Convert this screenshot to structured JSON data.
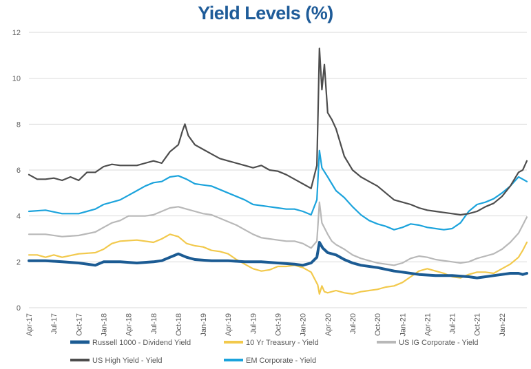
{
  "chart_data": {
    "type": "line",
    "title": "Yield Levels (%)",
    "xlabel": "",
    "ylabel": "",
    "ylim": [
      0,
      12
    ],
    "y_ticks": [
      0,
      2,
      4,
      6,
      8,
      10,
      12
    ],
    "x_domain": [
      0,
      60
    ],
    "x_ticks": [
      {
        "x": 0,
        "label": "Apr-17"
      },
      {
        "x": 3,
        "label": "Jul-17"
      },
      {
        "x": 6,
        "label": "Oct-17"
      },
      {
        "x": 9,
        "label": "Jan-18"
      },
      {
        "x": 12,
        "label": "Apr-18"
      },
      {
        "x": 15,
        "label": "Jul-18"
      },
      {
        "x": 18,
        "label": "Oct-18"
      },
      {
        "x": 21,
        "label": "Jan-19"
      },
      {
        "x": 24,
        "label": "Apr-19"
      },
      {
        "x": 27,
        "label": "Jul-19"
      },
      {
        "x": 30,
        "label": "Oct-19"
      },
      {
        "x": 33,
        "label": "Jan-20"
      },
      {
        "x": 36,
        "label": "Apr-20"
      },
      {
        "x": 39,
        "label": "Jul-20"
      },
      {
        "x": 42,
        "label": "Oct-20"
      },
      {
        "x": 45,
        "label": "Jan-21"
      },
      {
        "x": 48,
        "label": "Apr-21"
      },
      {
        "x": 51,
        "label": "Jul-21"
      },
      {
        "x": 54,
        "label": "Oct-21"
      },
      {
        "x": 57,
        "label": "Jan-22"
      }
    ],
    "grid": true,
    "legend_position": "bottom",
    "series": [
      {
        "name": "Russell 1000 - Dividend Yield",
        "color": "#1b5b93",
        "stroke": "thick",
        "points": [
          [
            0,
            2.05
          ],
          [
            2,
            2.05
          ],
          [
            4,
            2.0
          ],
          [
            6,
            1.95
          ],
          [
            8,
            1.85
          ],
          [
            9,
            2.0
          ],
          [
            11,
            2.0
          ],
          [
            13,
            1.95
          ],
          [
            15,
            2.0
          ],
          [
            16,
            2.05
          ],
          [
            17,
            2.2
          ],
          [
            18,
            2.35
          ],
          [
            19,
            2.2
          ],
          [
            20,
            2.1
          ],
          [
            22,
            2.05
          ],
          [
            24,
            2.05
          ],
          [
            26,
            2.0
          ],
          [
            28,
            2.0
          ],
          [
            30,
            1.95
          ],
          [
            32,
            1.9
          ],
          [
            33,
            1.85
          ],
          [
            34,
            1.95
          ],
          [
            34.7,
            2.2
          ],
          [
            35,
            2.85
          ],
          [
            35.4,
            2.6
          ],
          [
            36,
            2.4
          ],
          [
            37,
            2.3
          ],
          [
            38,
            2.1
          ],
          [
            39,
            1.95
          ],
          [
            40,
            1.85
          ],
          [
            42,
            1.75
          ],
          [
            44,
            1.6
          ],
          [
            45,
            1.55
          ],
          [
            47,
            1.45
          ],
          [
            49,
            1.4
          ],
          [
            51,
            1.4
          ],
          [
            53,
            1.35
          ],
          [
            54,
            1.3
          ],
          [
            55,
            1.35
          ],
          [
            56,
            1.4
          ],
          [
            57,
            1.45
          ],
          [
            58,
            1.5
          ],
          [
            59,
            1.5
          ],
          [
            59.5,
            1.45
          ],
          [
            60,
            1.5
          ]
        ]
      },
      {
        "name": "10 Yr Treasury - Yield",
        "color": "#f2c94c",
        "stroke": "normal",
        "points": [
          [
            0,
            2.3
          ],
          [
            1,
            2.3
          ],
          [
            2,
            2.2
          ],
          [
            3,
            2.3
          ],
          [
            4,
            2.2
          ],
          [
            6,
            2.35
          ],
          [
            8,
            2.4
          ],
          [
            9,
            2.55
          ],
          [
            10,
            2.8
          ],
          [
            11,
            2.9
          ],
          [
            13,
            2.95
          ],
          [
            15,
            2.85
          ],
          [
            16,
            3.0
          ],
          [
            17,
            3.2
          ],
          [
            18,
            3.1
          ],
          [
            19,
            2.8
          ],
          [
            20,
            2.7
          ],
          [
            21,
            2.65
          ],
          [
            22,
            2.5
          ],
          [
            23,
            2.45
          ],
          [
            24,
            2.35
          ],
          [
            25,
            2.1
          ],
          [
            26,
            1.9
          ],
          [
            27,
            1.7
          ],
          [
            28,
            1.6
          ],
          [
            29,
            1.65
          ],
          [
            30,
            1.8
          ],
          [
            31,
            1.8
          ],
          [
            32,
            1.85
          ],
          [
            33,
            1.75
          ],
          [
            34,
            1.55
          ],
          [
            34.8,
            1.0
          ],
          [
            35,
            0.6
          ],
          [
            35.3,
            0.95
          ],
          [
            35.6,
            0.7
          ],
          [
            36,
            0.65
          ],
          [
            37,
            0.75
          ],
          [
            38,
            0.65
          ],
          [
            39,
            0.6
          ],
          [
            40,
            0.7
          ],
          [
            41,
            0.75
          ],
          [
            42,
            0.8
          ],
          [
            43,
            0.9
          ],
          [
            44,
            0.95
          ],
          [
            45,
            1.1
          ],
          [
            46,
            1.35
          ],
          [
            47,
            1.6
          ],
          [
            48,
            1.7
          ],
          [
            49,
            1.6
          ],
          [
            50,
            1.5
          ],
          [
            51,
            1.35
          ],
          [
            52,
            1.3
          ],
          [
            53,
            1.45
          ],
          [
            54,
            1.55
          ],
          [
            55,
            1.55
          ],
          [
            56,
            1.5
          ],
          [
            57,
            1.7
          ],
          [
            58,
            1.9
          ],
          [
            59,
            2.2
          ],
          [
            59.5,
            2.5
          ],
          [
            60,
            2.85
          ]
        ]
      },
      {
        "name": "US IG Corporate - Yield",
        "color": "#b8b8b8",
        "stroke": "normal",
        "points": [
          [
            0,
            3.2
          ],
          [
            2,
            3.2
          ],
          [
            4,
            3.1
          ],
          [
            6,
            3.15
          ],
          [
            8,
            3.3
          ],
          [
            9,
            3.5
          ],
          [
            10,
            3.7
          ],
          [
            11,
            3.8
          ],
          [
            12,
            4.0
          ],
          [
            13,
            4.0
          ],
          [
            14,
            4.0
          ],
          [
            15,
            4.05
          ],
          [
            16,
            4.2
          ],
          [
            17,
            4.35
          ],
          [
            18,
            4.4
          ],
          [
            19,
            4.3
          ],
          [
            20,
            4.2
          ],
          [
            21,
            4.1
          ],
          [
            22,
            4.05
          ],
          [
            23,
            3.9
          ],
          [
            24,
            3.75
          ],
          [
            25,
            3.6
          ],
          [
            26,
            3.4
          ],
          [
            27,
            3.2
          ],
          [
            28,
            3.05
          ],
          [
            29,
            3.0
          ],
          [
            30,
            2.95
          ],
          [
            31,
            2.9
          ],
          [
            32,
            2.9
          ],
          [
            33,
            2.8
          ],
          [
            34,
            2.6
          ],
          [
            34.7,
            2.9
          ],
          [
            35,
            4.6
          ],
          [
            35.3,
            3.7
          ],
          [
            36,
            3.2
          ],
          [
            36.5,
            2.9
          ],
          [
            37,
            2.75
          ],
          [
            38,
            2.55
          ],
          [
            39,
            2.3
          ],
          [
            40,
            2.15
          ],
          [
            41,
            2.05
          ],
          [
            42,
            1.95
          ],
          [
            43,
            1.9
          ],
          [
            44,
            1.85
          ],
          [
            45,
            1.95
          ],
          [
            46,
            2.15
          ],
          [
            47,
            2.25
          ],
          [
            48,
            2.2
          ],
          [
            49,
            2.1
          ],
          [
            50,
            2.05
          ],
          [
            51,
            2.0
          ],
          [
            52,
            1.95
          ],
          [
            53,
            2.0
          ],
          [
            54,
            2.15
          ],
          [
            55,
            2.25
          ],
          [
            56,
            2.35
          ],
          [
            57,
            2.55
          ],
          [
            58,
            2.85
          ],
          [
            59,
            3.25
          ],
          [
            59.5,
            3.6
          ],
          [
            60,
            3.95
          ]
        ]
      },
      {
        "name": "US High Yield - Yield",
        "color": "#4d4d4d",
        "stroke": "normal",
        "points": [
          [
            0,
            5.8
          ],
          [
            1,
            5.6
          ],
          [
            2,
            5.6
          ],
          [
            3,
            5.65
          ],
          [
            4,
            5.55
          ],
          [
            5,
            5.7
          ],
          [
            6,
            5.55
          ],
          [
            7,
            5.9
          ],
          [
            8,
            5.9
          ],
          [
            9,
            6.15
          ],
          [
            10,
            6.25
          ],
          [
            11,
            6.2
          ],
          [
            12,
            6.2
          ],
          [
            13,
            6.2
          ],
          [
            14,
            6.3
          ],
          [
            15,
            6.4
          ],
          [
            16,
            6.3
          ],
          [
            17,
            6.8
          ],
          [
            18,
            7.1
          ],
          [
            18.5,
            7.7
          ],
          [
            18.8,
            8.0
          ],
          [
            19.2,
            7.5
          ],
          [
            20,
            7.1
          ],
          [
            21,
            6.9
          ],
          [
            22,
            6.7
          ],
          [
            23,
            6.5
          ],
          [
            24,
            6.4
          ],
          [
            25,
            6.3
          ],
          [
            26,
            6.2
          ],
          [
            27,
            6.1
          ],
          [
            28,
            6.2
          ],
          [
            29,
            6.0
          ],
          [
            30,
            5.95
          ],
          [
            31,
            5.8
          ],
          [
            32,
            5.6
          ],
          [
            33,
            5.4
          ],
          [
            34,
            5.2
          ],
          [
            34.7,
            6.2
          ],
          [
            35,
            11.3
          ],
          [
            35.3,
            9.5
          ],
          [
            35.6,
            10.6
          ],
          [
            36,
            8.5
          ],
          [
            36.5,
            8.2
          ],
          [
            37,
            7.8
          ],
          [
            37.5,
            7.2
          ],
          [
            38,
            6.6
          ],
          [
            39,
            6.0
          ],
          [
            40,
            5.7
          ],
          [
            41,
            5.5
          ],
          [
            42,
            5.3
          ],
          [
            43,
            5.0
          ],
          [
            44,
            4.7
          ],
          [
            45,
            4.6
          ],
          [
            46,
            4.5
          ],
          [
            47,
            4.35
          ],
          [
            48,
            4.25
          ],
          [
            49,
            4.2
          ],
          [
            50,
            4.15
          ],
          [
            51,
            4.1
          ],
          [
            52,
            4.05
          ],
          [
            53,
            4.1
          ],
          [
            54,
            4.2
          ],
          [
            55,
            4.4
          ],
          [
            56,
            4.55
          ],
          [
            57,
            4.85
          ],
          [
            58,
            5.3
          ],
          [
            59,
            5.9
          ],
          [
            59.5,
            6.0
          ],
          [
            60,
            6.4
          ]
        ]
      },
      {
        "name": "EM Corporate - Yield",
        "color": "#1ba3dc",
        "stroke": "normal",
        "points": [
          [
            0,
            4.2
          ],
          [
            2,
            4.25
          ],
          [
            4,
            4.1
          ],
          [
            6,
            4.1
          ],
          [
            8,
            4.3
          ],
          [
            9,
            4.5
          ],
          [
            10,
            4.6
          ],
          [
            11,
            4.7
          ],
          [
            12,
            4.9
          ],
          [
            13,
            5.1
          ],
          [
            14,
            5.3
          ],
          [
            15,
            5.45
          ],
          [
            16,
            5.5
          ],
          [
            17,
            5.7
          ],
          [
            18,
            5.75
          ],
          [
            19,
            5.6
          ],
          [
            20,
            5.4
          ],
          [
            21,
            5.35
          ],
          [
            22,
            5.3
          ],
          [
            23,
            5.15
          ],
          [
            24,
            5.0
          ],
          [
            25,
            4.85
          ],
          [
            26,
            4.7
          ],
          [
            27,
            4.5
          ],
          [
            28,
            4.45
          ],
          [
            29,
            4.4
          ],
          [
            30,
            4.35
          ],
          [
            31,
            4.3
          ],
          [
            32,
            4.3
          ],
          [
            33,
            4.2
          ],
          [
            34,
            4.05
          ],
          [
            34.7,
            4.7
          ],
          [
            35,
            6.85
          ],
          [
            35.3,
            6.1
          ],
          [
            36,
            5.7
          ],
          [
            36.5,
            5.4
          ],
          [
            37,
            5.1
          ],
          [
            38,
            4.8
          ],
          [
            39,
            4.4
          ],
          [
            40,
            4.05
          ],
          [
            41,
            3.8
          ],
          [
            42,
            3.65
          ],
          [
            43,
            3.55
          ],
          [
            44,
            3.4
          ],
          [
            45,
            3.5
          ],
          [
            46,
            3.65
          ],
          [
            47,
            3.6
          ],
          [
            48,
            3.5
          ],
          [
            49,
            3.45
          ],
          [
            50,
            3.4
          ],
          [
            51,
            3.45
          ],
          [
            52,
            3.7
          ],
          [
            53,
            4.2
          ],
          [
            54,
            4.5
          ],
          [
            55,
            4.6
          ],
          [
            56,
            4.75
          ],
          [
            57,
            5.0
          ],
          [
            58,
            5.3
          ],
          [
            59,
            5.7
          ],
          [
            59.5,
            5.6
          ],
          [
            60,
            5.5
          ]
        ]
      }
    ]
  }
}
